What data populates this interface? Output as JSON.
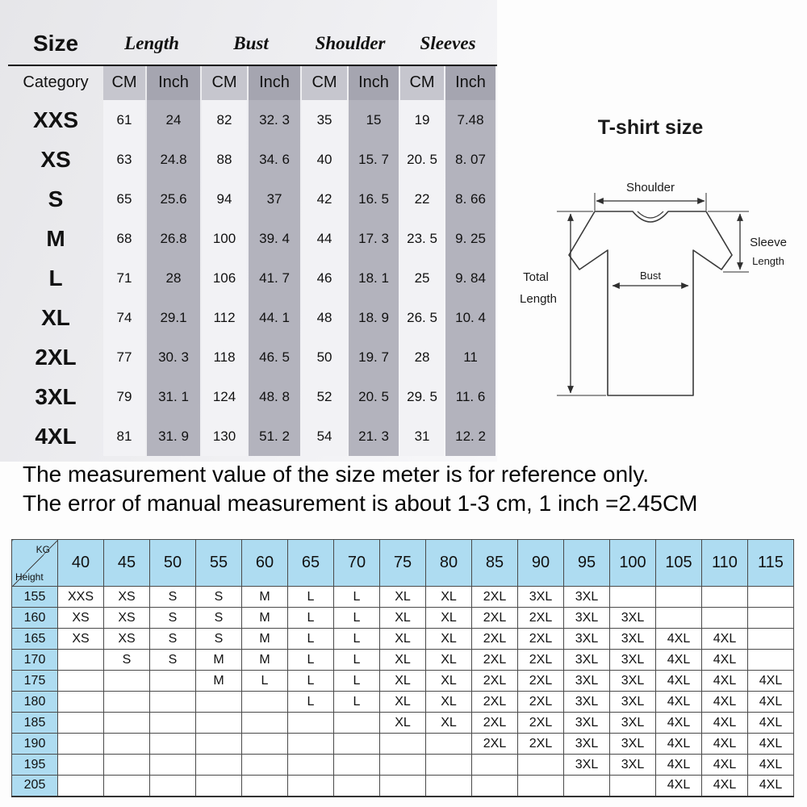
{
  "size_table": {
    "header": {
      "size": "Size",
      "category": "Category",
      "groups": [
        "Length",
        "Bust",
        "Shoulder",
        "Sleeves"
      ],
      "cm": "CM",
      "inch": "Inch"
    },
    "rows": [
      {
        "size": "XXS",
        "values": [
          "61",
          "24",
          "82",
          "32. 3",
          "35",
          "15",
          "19",
          "7.48"
        ]
      },
      {
        "size": "XS",
        "values": [
          "63",
          "24.8",
          "88",
          "34. 6",
          "40",
          "15. 7",
          "20. 5",
          "8. 07"
        ]
      },
      {
        "size": "S",
        "values": [
          "65",
          "25.6",
          "94",
          "37",
          "42",
          "16. 5",
          "22",
          "8. 66"
        ]
      },
      {
        "size": "M",
        "values": [
          "68",
          "26.8",
          "100",
          "39. 4",
          "44",
          "17. 3",
          "23. 5",
          "9. 25"
        ]
      },
      {
        "size": "L",
        "values": [
          "71",
          "28",
          "106",
          "41. 7",
          "46",
          "18. 1",
          "25",
          "9. 84"
        ]
      },
      {
        "size": "XL",
        "values": [
          "74",
          "29.1",
          "112",
          "44. 1",
          "48",
          "18. 9",
          "26. 5",
          "10. 4"
        ]
      },
      {
        "size": "2XL",
        "values": [
          "77",
          "30. 3",
          "118",
          "46. 5",
          "50",
          "19. 7",
          "28",
          "11"
        ]
      },
      {
        "size": "3XL",
        "values": [
          "79",
          "31. 1",
          "124",
          "48. 8",
          "52",
          "20. 5",
          "29. 5",
          "11. 6"
        ]
      },
      {
        "size": "4XL",
        "values": [
          "81",
          "31. 9",
          "130",
          "51. 2",
          "54",
          "21. 3",
          "31",
          "12. 2"
        ]
      }
    ]
  },
  "diagram": {
    "title": "T-shirt size",
    "shoulder": "Shoulder",
    "bust": "Bust",
    "total_line1": "Total",
    "total_line2": "Length",
    "sleeve_line1": "Sleeve",
    "sleeve_line2": "Length"
  },
  "notes": {
    "line1": "The measurement value of the size meter is for reference only.",
    "line2": "The error of manual measurement is about 1-3 cm, 1 inch =2.45CM"
  },
  "weight_height_table": {
    "corner": {
      "kg": "KG",
      "height": "Height"
    },
    "weights": [
      "40",
      "45",
      "50",
      "55",
      "60",
      "65",
      "70",
      "75",
      "80",
      "85",
      "90",
      "95",
      "100",
      "105",
      "110",
      "115"
    ],
    "rows": [
      {
        "height": "155",
        "sizes": [
          "XXS",
          "XS",
          "S",
          "S",
          "M",
          "L",
          "L",
          "XL",
          "XL",
          "2XL",
          "3XL",
          "3XL",
          "",
          "",
          "",
          ""
        ]
      },
      {
        "height": "160",
        "sizes": [
          "XS",
          "XS",
          "S",
          "S",
          "M",
          "L",
          "L",
          "XL",
          "XL",
          "2XL",
          "2XL",
          "3XL",
          "3XL",
          "",
          "",
          ""
        ]
      },
      {
        "height": "165",
        "sizes": [
          "XS",
          "XS",
          "S",
          "S",
          "M",
          "L",
          "L",
          "XL",
          "XL",
          "2XL",
          "2XL",
          "3XL",
          "3XL",
          "4XL",
          "4XL",
          ""
        ]
      },
      {
        "height": "170",
        "sizes": [
          "",
          "S",
          "S",
          "M",
          "M",
          "L",
          "L",
          "XL",
          "XL",
          "2XL",
          "2XL",
          "3XL",
          "3XL",
          "4XL",
          "4XL",
          ""
        ]
      },
      {
        "height": "175",
        "sizes": [
          "",
          "",
          "",
          "M",
          "L",
          "L",
          "L",
          "XL",
          "XL",
          "2XL",
          "2XL",
          "3XL",
          "3XL",
          "4XL",
          "4XL",
          "4XL"
        ]
      },
      {
        "height": "180",
        "sizes": [
          "",
          "",
          "",
          "",
          "",
          "L",
          "L",
          "XL",
          "XL",
          "2XL",
          "2XL",
          "3XL",
          "3XL",
          "4XL",
          "4XL",
          "4XL"
        ]
      },
      {
        "height": "185",
        "sizes": [
          "",
          "",
          "",
          "",
          "",
          "",
          "",
          "XL",
          "XL",
          "2XL",
          "2XL",
          "3XL",
          "3XL",
          "4XL",
          "4XL",
          "4XL"
        ]
      },
      {
        "height": "190",
        "sizes": [
          "",
          "",
          "",
          "",
          "",
          "",
          "",
          "",
          "",
          "2XL",
          "2XL",
          "3XL",
          "3XL",
          "4XL",
          "4XL",
          "4XL"
        ]
      },
      {
        "height": "195",
        "sizes": [
          "",
          "",
          "",
          "",
          "",
          "",
          "",
          "",
          "",
          "",
          "",
          "3XL",
          "3XL",
          "4XL",
          "4XL",
          "4XL"
        ]
      },
      {
        "height": "205",
        "sizes": [
          "",
          "",
          "",
          "",
          "",
          "",
          "",
          "",
          "",
          "",
          "",
          "",
          "",
          "4XL",
          "4XL",
          "4XL"
        ]
      }
    ]
  }
}
